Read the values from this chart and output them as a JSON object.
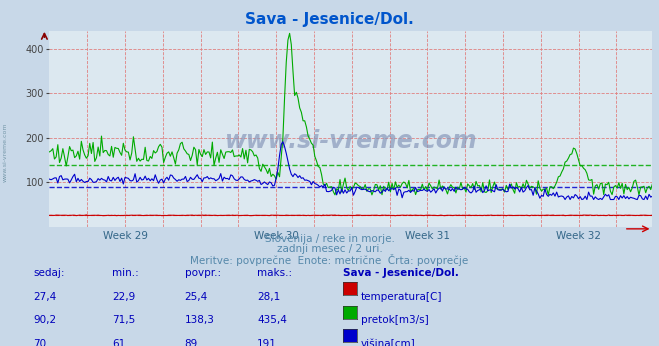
{
  "title": "Sava - Jesenice/Dol.",
  "title_color": "#0055cc",
  "background_color": "#c8d8e8",
  "plot_bg_color": "#dce8f0",
  "ylim": [
    0,
    440
  ],
  "yticks": [
    100,
    200,
    300,
    400
  ],
  "week_labels": [
    "Week 29",
    "Week 30",
    "Week 31",
    "Week 32"
  ],
  "line_color_temp": "#cc0000",
  "line_color_flow": "#00aa00",
  "line_color_height": "#0000cc",
  "avg_green": 138.3,
  "avg_blue": 89.0,
  "avg_red": 25.4,
  "watermark_text": "www.si-vreme.com",
  "watermark_color": "#8899bb",
  "subtitle1": "Slovenija / reke in morje.",
  "subtitle2": "zadnji mesec / 2 uri.",
  "subtitle3": "Meritve: povprečne  Enote: metrične  Črta: povprečje",
  "subtitle_color": "#5588aa",
  "table_header": [
    "sedaj:",
    "min.:",
    "povpr.:",
    "maks.:",
    "Sava - Jesenice/Dol."
  ],
  "table_color": "#0000bb",
  "table_data": [
    [
      "27,4",
      "22,9",
      "25,4",
      "28,1"
    ],
    [
      "90,2",
      "71,5",
      "138,3",
      "435,4"
    ],
    [
      "70",
      "61",
      "89",
      "191"
    ]
  ],
  "legend_labels": [
    "temperatura[C]",
    "pretok[m3/s]",
    "višina[cm]"
  ],
  "legend_colors": [
    "#cc0000",
    "#00aa00",
    "#0000cc"
  ],
  "n_points": 360
}
